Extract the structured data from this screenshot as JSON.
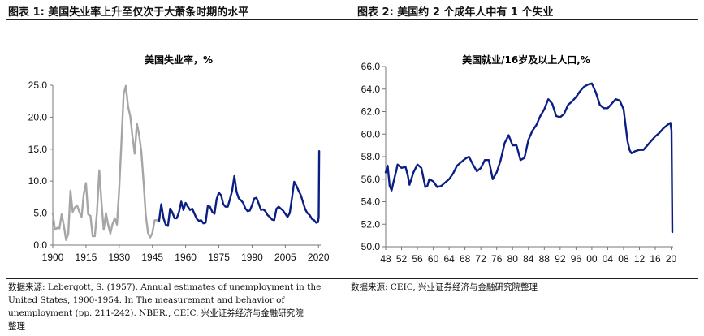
{
  "header": {
    "left_title": "图表 1:  美国失业率上升至仅次于大萧条时期的水平",
    "right_title": "图表 2:  美国约 2 个成年人中有 1 个失业"
  },
  "sources": {
    "left_line1": "数据来源:  Lebergott, S. (1957). Annual estimates of unemployment in the",
    "left_line2": "United   States,   1900-1954.   In   The   measurement   and   behavior   of",
    "left_line3": "unemployment (pp. 211-242). NBER.,  CEIC, 兴业证券经济与金融研究院",
    "left_line4": "整理",
    "right_line1": "数据来源:  CEIC, 兴业证券经济与金融研究院整理"
  },
  "chart_data": [
    {
      "type": "line",
      "title": "美国失业率，%",
      "xlabel": "",
      "ylabel": "",
      "xlim": [
        1900,
        2021
      ],
      "ylim": [
        0,
        25
      ],
      "x_ticks": [
        "1900",
        "1915",
        "1930",
        "1945",
        "1960",
        "1975",
        "1990",
        "2005",
        "2020"
      ],
      "y_ticks": [
        "25.0",
        "20.0",
        "15.0",
        "10.0",
        "5.0",
        "0.0"
      ],
      "grid": false,
      "series": [
        {
          "color": "#a6a6a6",
          "x": [
            1900,
            1901,
            1902,
            1903,
            1904,
            1905,
            1906,
            1907,
            1908,
            1909,
            1910,
            1911,
            1912,
            1913,
            1914,
            1915,
            1916,
            1917,
            1918,
            1919,
            1920,
            1921,
            1922,
            1923,
            1924,
            1925,
            1926,
            1927,
            1928,
            1929,
            1930,
            1931,
            1932,
            1933,
            1934,
            1935,
            1936,
            1937,
            1938,
            1939,
            1940,
            1941,
            1942,
            1943,
            1944,
            1945,
            1946,
            1947,
            1948
          ],
          "values": [
            5.0,
            2.4,
            2.7,
            2.6,
            4.8,
            3.1,
            0.8,
            1.8,
            8.5,
            5.2,
            5.9,
            6.2,
            5.2,
            4.4,
            8.0,
            9.7,
            4.8,
            4.6,
            1.4,
            1.4,
            5.2,
            11.7,
            6.7,
            2.4,
            5.0,
            3.2,
            1.8,
            3.3,
            4.2,
            3.2,
            8.7,
            15.9,
            23.6,
            24.9,
            21.7,
            20.1,
            16.9,
            14.3,
            19.0,
            17.2,
            14.6,
            9.9,
            4.7,
            1.9,
            1.2,
            1.9,
            3.9,
            3.9,
            3.8
          ]
        },
        {
          "color": "#0b1e84",
          "x": [
            1948,
            1949,
            1950,
            1951,
            1952,
            1953,
            1954,
            1955,
            1956,
            1957,
            1958,
            1959,
            1960,
            1961,
            1962,
            1963,
            1964,
            1965,
            1966,
            1967,
            1968,
            1969,
            1970,
            1971,
            1972,
            1973,
            1974,
            1975,
            1976,
            1977,
            1978,
            1979,
            1980,
            1981,
            1982,
            1983,
            1984,
            1985,
            1986,
            1987,
            1988,
            1989,
            1990,
            1991,
            1992,
            1993,
            1994,
            1995,
            1996,
            1997,
            1998,
            1999,
            2000,
            2001,
            2002,
            2003,
            2004,
            2005,
            2006,
            2007,
            2008,
            2009,
            2010,
            2011,
            2012,
            2013,
            2014,
            2015,
            2016,
            2017,
            2018,
            2019,
            2019.8,
            2020.1,
            2020.3
          ],
          "values": [
            3.8,
            6.4,
            4.2,
            3.2,
            3.0,
            5.7,
            5.1,
            4.2,
            4.2,
            5.2,
            6.8,
            5.5,
            6.6,
            6.0,
            5.5,
            5.7,
            4.9,
            4.1,
            3.8,
            3.9,
            3.4,
            3.5,
            6.1,
            6.0,
            5.2,
            4.9,
            7.2,
            8.2,
            7.8,
            6.4,
            6.0,
            6.0,
            7.2,
            8.5,
            10.8,
            8.3,
            7.3,
            7.0,
            6.6,
            5.7,
            5.3,
            5.4,
            6.3,
            7.3,
            7.4,
            6.5,
            5.5,
            5.6,
            5.3,
            4.7,
            4.4,
            4.0,
            3.9,
            5.7,
            6.0,
            5.7,
            5.4,
            4.9,
            4.4,
            5.0,
            7.3,
            9.9,
            9.3,
            8.5,
            7.8,
            6.7,
            5.6,
            5.0,
            4.7,
            4.1,
            3.9,
            3.5,
            3.6,
            4.4,
            14.7
          ]
        }
      ]
    },
    {
      "type": "line",
      "title": "美国就业/16岁及以上人口,%",
      "xlabel": "",
      "ylabel": "",
      "xlim": [
        1948,
        2020.5
      ],
      "ylim": [
        50,
        66
      ],
      "x_ticks": [
        "48",
        "52",
        "56",
        "60",
        "64",
        "68",
        "72",
        "76",
        "80",
        "84",
        "88",
        "92",
        "96",
        "00",
        "04",
        "08",
        "12",
        "16",
        "20"
      ],
      "y_ticks": [
        "66.0",
        "64.0",
        "62.0",
        "60.0",
        "58.0",
        "56.0",
        "54.0",
        "52.0",
        "50.0"
      ],
      "grid": false,
      "series": [
        {
          "color": "#0b1e84",
          "x": [
            1948,
            1948.5,
            1949,
            1949.5,
            1950,
            1950.7,
            1951,
            1952,
            1953,
            1953.6,
            1954,
            1955,
            1956,
            1957,
            1958,
            1958.5,
            1959,
            1960,
            1961,
            1962,
            1963,
            1964,
            1965,
            1966,
            1967,
            1968,
            1969,
            1970,
            1971,
            1972,
            1973,
            1974,
            1975,
            1976,
            1977,
            1978,
            1979,
            1980,
            1981,
            1982,
            1983,
            1984,
            1985,
            1986,
            1987,
            1988,
            1989,
            1990,
            1991,
            1992,
            1993,
            1994,
            1995,
            1996,
            1997,
            1998,
            1999,
            2000,
            2001,
            2002,
            2003,
            2004,
            2005,
            2006,
            2007,
            2008,
            2009,
            2009.5,
            2010,
            2011,
            2012,
            2013,
            2014,
            2015,
            2016,
            2017,
            2018,
            2019,
            2019.8,
            2020.1,
            2020.3
          ],
          "values": [
            56.6,
            57.2,
            55.4,
            55.0,
            55.8,
            56.8,
            57.3,
            57.0,
            57.1,
            56.3,
            55.5,
            56.6,
            57.3,
            57.0,
            55.3,
            55.4,
            56.0,
            55.8,
            55.3,
            55.4,
            55.7,
            56.0,
            56.5,
            57.2,
            57.5,
            57.8,
            58.0,
            57.3,
            56.7,
            57.0,
            57.7,
            57.7,
            56.0,
            56.6,
            57.7,
            59.2,
            59.9,
            59.0,
            59.0,
            57.7,
            57.9,
            59.5,
            60.3,
            60.8,
            61.6,
            62.2,
            63.1,
            62.7,
            61.6,
            61.5,
            61.8,
            62.6,
            62.9,
            63.3,
            63.8,
            64.2,
            64.4,
            64.5,
            63.7,
            62.6,
            62.3,
            62.3,
            62.7,
            63.1,
            63.0,
            62.2,
            59.4,
            58.6,
            58.3,
            58.5,
            58.6,
            58.6,
            59.0,
            59.4,
            59.8,
            60.1,
            60.5,
            60.8,
            61.0,
            60.3,
            51.3
          ]
        }
      ]
    }
  ]
}
